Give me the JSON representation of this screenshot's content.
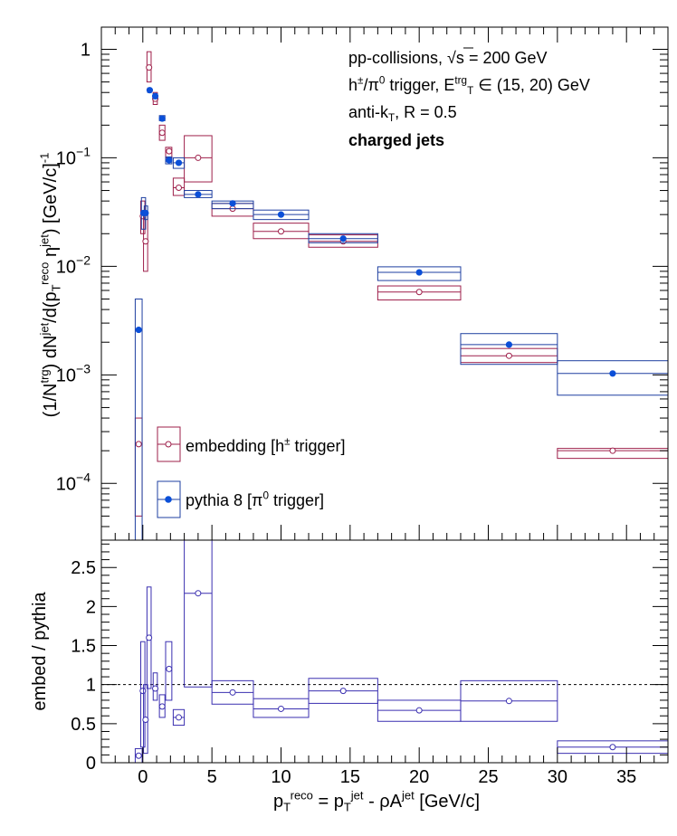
{
  "colors": {
    "embedding": "#9e1f4a",
    "pythia": "#1e3fa0",
    "ratio": "#3a2fb0",
    "pythia_marker": "#0b4fd8",
    "axis": "#000000"
  },
  "chart_data": [
    {
      "type": "scatter",
      "name": "spectrum",
      "xlim": [
        -3,
        38
      ],
      "ylim": [
        3e-05,
        1.6
      ],
      "log_y": true,
      "grid": false,
      "legend_position": "bottom-left",
      "ylabel": "(1/N^trg) dN^jet/d(p_T^reco,jet η^jet) [GeV/c]^-1",
      "ytick_labels": [
        "1",
        "10^-1",
        "10^-2",
        "10^-3",
        "10^-4"
      ],
      "annotations": [
        "pp-collisions, √s = 200 GeV",
        "h±/π0 trigger, E_T^trg ∈ (15, 20) GeV",
        "anti-k_T, R = 0.5",
        "charged jets"
      ],
      "series": [
        {
          "name": "embedding [h± trigger]",
          "marker": "open-circle",
          "points": [
            {
              "x": -0.3,
              "y": 0.00023,
              "xlo": -0.55,
              "xhi": -0.05,
              "ylo": 5e-05,
              "yhi": 0.0004
            },
            {
              "x": 0.0,
              "y": 0.029,
              "xlo": -0.15,
              "xhi": 0.15,
              "ylo": 0.02,
              "yhi": 0.04
            },
            {
              "x": 0.2,
              "y": 0.017,
              "xlo": 0.05,
              "xhi": 0.35,
              "ylo": 0.009,
              "yhi": 0.03
            },
            {
              "x": 0.45,
              "y": 0.68,
              "xlo": 0.3,
              "xhi": 0.6,
              "ylo": 0.5,
              "yhi": 0.95
            },
            {
              "x": 0.9,
              "y": 0.35,
              "xlo": 0.75,
              "xhi": 1.05,
              "ylo": 0.31,
              "yhi": 0.4
            },
            {
              "x": 1.4,
              "y": 0.17,
              "xlo": 1.2,
              "xhi": 1.6,
              "ylo": 0.145,
              "yhi": 0.2
            },
            {
              "x": 1.9,
              "y": 0.115,
              "xlo": 1.65,
              "xhi": 2.1,
              "ylo": 0.1,
              "yhi": 0.125
            },
            {
              "x": 2.6,
              "y": 0.053,
              "xlo": 2.2,
              "xhi": 3.0,
              "ylo": 0.045,
              "yhi": 0.065
            },
            {
              "x": 4.0,
              "y": 0.1,
              "xlo": 3.0,
              "xhi": 5.0,
              "ylo": 0.06,
              "yhi": 0.16
            },
            {
              "x": 6.5,
              "y": 0.034,
              "xlo": 5.0,
              "xhi": 8.0,
              "ylo": 0.029,
              "yhi": 0.038
            },
            {
              "x": 10.0,
              "y": 0.021,
              "xlo": 8.0,
              "xhi": 12.0,
              "ylo": 0.018,
              "yhi": 0.025
            },
            {
              "x": 14.5,
              "y": 0.017,
              "xlo": 12.0,
              "xhi": 17.0,
              "ylo": 0.015,
              "yhi": 0.0195
            },
            {
              "x": 20.0,
              "y": 0.0058,
              "xlo": 17.0,
              "xhi": 23.0,
              "ylo": 0.0049,
              "yhi": 0.0066
            },
            {
              "x": 26.5,
              "y": 0.0015,
              "xlo": 23.0,
              "xhi": 30.0,
              "ylo": 0.0013,
              "yhi": 0.00175
            },
            {
              "x": 34.0,
              "y": 0.0002,
              "xlo": 30.0,
              "xhi": 38.0,
              "ylo": 0.00017,
              "yhi": 0.00021
            }
          ]
        },
        {
          "name": "pythia 8 [π0 trigger]",
          "marker": "filled-circle",
          "points": [
            {
              "x": -0.3,
              "y": 0.0026,
              "xlo": -0.55,
              "xhi": -0.05,
              "ylo": 3e-05,
              "yhi": 0.005
            },
            {
              "x": 0.05,
              "y": 0.031,
              "xlo": -0.1,
              "xhi": 0.2,
              "ylo": 0.022,
              "yhi": 0.043
            },
            {
              "x": 0.2,
              "y": 0.031,
              "xlo": 0.1,
              "xhi": 0.35,
              "ylo": 0.027,
              "yhi": 0.036
            },
            {
              "x": 0.5,
              "y": 0.42,
              "xlo": 0.35,
              "xhi": 0.6,
              "ylo": 0.4,
              "yhi": 0.44
            },
            {
              "x": 0.9,
              "y": 0.37,
              "xlo": 0.75,
              "xhi": 1.05,
              "ylo": 0.35,
              "yhi": 0.39
            },
            {
              "x": 1.4,
              "y": 0.23,
              "xlo": 1.2,
              "xhi": 1.6,
              "ylo": 0.22,
              "yhi": 0.245
            },
            {
              "x": 1.9,
              "y": 0.095,
              "xlo": 1.65,
              "xhi": 2.1,
              "ylo": 0.088,
              "yhi": 0.102
            },
            {
              "x": 2.6,
              "y": 0.09,
              "xlo": 2.2,
              "xhi": 3.0,
              "ylo": 0.08,
              "yhi": 0.1
            },
            {
              "x": 4.0,
              "y": 0.046,
              "xlo": 3.0,
              "xhi": 5.0,
              "ylo": 0.043,
              "yhi": 0.05
            },
            {
              "x": 6.5,
              "y": 0.038,
              "xlo": 5.0,
              "xhi": 8.0,
              "ylo": 0.034,
              "yhi": 0.04
            },
            {
              "x": 10.0,
              "y": 0.03,
              "xlo": 8.0,
              "xhi": 12.0,
              "ylo": 0.027,
              "yhi": 0.033
            },
            {
              "x": 14.5,
              "y": 0.018,
              "xlo": 12.0,
              "xhi": 17.0,
              "ylo": 0.0165,
              "yhi": 0.02
            },
            {
              "x": 20.0,
              "y": 0.0088,
              "xlo": 17.0,
              "xhi": 23.0,
              "ylo": 0.0074,
              "yhi": 0.0099
            },
            {
              "x": 26.5,
              "y": 0.0019,
              "xlo": 23.0,
              "xhi": 30.0,
              "ylo": 0.00125,
              "yhi": 0.0024
            },
            {
              "x": 34.0,
              "y": 0.00103,
              "xlo": 30.0,
              "xhi": 38.0,
              "ylo": 0.00065,
              "yhi": 0.00135
            }
          ]
        }
      ]
    },
    {
      "type": "scatter",
      "name": "ratio",
      "xlim": [
        -3,
        38
      ],
      "ylim": [
        0,
        2.85
      ],
      "grid": false,
      "ylabel": "embed / pythia",
      "xlabel": "p_T^reco = p_T^jet - ρA^jet [GeV/c]",
      "xticks": [
        0,
        5,
        10,
        15,
        20,
        25,
        30,
        35
      ],
      "yticks": [
        0,
        0.5,
        1,
        1.5,
        2,
        2.5
      ],
      "reference_line": 1,
      "series": [
        {
          "name": "embed / pythia",
          "marker": "open-circle",
          "points": [
            {
              "x": -3.0,
              "y": 0.0,
              "xlo": -3.0,
              "xhi": -0.55,
              "ylo": 0.0,
              "yhi": 0.0
            },
            {
              "x": -0.3,
              "y": 0.09,
              "xlo": -0.55,
              "xhi": -0.05,
              "ylo": 0.0,
              "yhi": 0.18
            },
            {
              "x": 0.0,
              "y": 0.92,
              "xlo": -0.15,
              "xhi": 0.15,
              "ylo": 0.2,
              "yhi": 1.55
            },
            {
              "x": 0.2,
              "y": 0.55,
              "xlo": 0.05,
              "xhi": 0.35,
              "ylo": 0.12,
              "yhi": 1.0
            },
            {
              "x": 0.45,
              "y": 1.6,
              "xlo": 0.3,
              "xhi": 0.6,
              "ylo": 0.95,
              "yhi": 2.25
            },
            {
              "x": 0.9,
              "y": 0.95,
              "xlo": 0.75,
              "xhi": 1.05,
              "ylo": 0.8,
              "yhi": 1.15
            },
            {
              "x": 1.4,
              "y": 0.72,
              "xlo": 1.2,
              "xhi": 1.6,
              "ylo": 0.58,
              "yhi": 0.87
            },
            {
              "x": 1.9,
              "y": 1.2,
              "xlo": 1.65,
              "xhi": 2.1,
              "ylo": 0.8,
              "yhi": 1.55
            },
            {
              "x": 2.6,
              "y": 0.58,
              "xlo": 2.2,
              "xhi": 3.0,
              "ylo": 0.48,
              "yhi": 0.68
            },
            {
              "x": 4.0,
              "y": 2.17,
              "xlo": 3.0,
              "xhi": 5.0,
              "ylo": 0.97,
              "yhi": 2.85
            },
            {
              "x": 6.5,
              "y": 0.9,
              "xlo": 5.0,
              "xhi": 8.0,
              "ylo": 0.75,
              "yhi": 1.05
            },
            {
              "x": 10.0,
              "y": 0.69,
              "xlo": 8.0,
              "xhi": 12.0,
              "ylo": 0.58,
              "yhi": 0.82
            },
            {
              "x": 14.5,
              "y": 0.92,
              "xlo": 12.0,
              "xhi": 17.0,
              "ylo": 0.76,
              "yhi": 1.08
            },
            {
              "x": 20.0,
              "y": 0.67,
              "xlo": 17.0,
              "xhi": 23.0,
              "ylo": 0.53,
              "yhi": 0.8
            },
            {
              "x": 26.5,
              "y": 0.79,
              "xlo": 23.0,
              "xhi": 30.0,
              "ylo": 0.53,
              "yhi": 1.05
            },
            {
              "x": 34.0,
              "y": 0.2,
              "xlo": 30.0,
              "xhi": 38.0,
              "ylo": 0.12,
              "yhi": 0.28
            }
          ]
        }
      ]
    }
  ]
}
